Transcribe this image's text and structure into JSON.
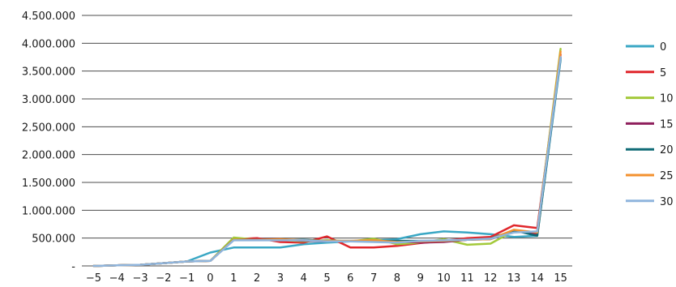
{
  "chart_data": {
    "type": "line",
    "title": "",
    "xlabel": "",
    "ylabel": "",
    "x": [
      -5,
      -4,
      -3,
      -2,
      -1,
      0,
      1,
      2,
      3,
      4,
      5,
      6,
      7,
      8,
      9,
      10,
      11,
      12,
      13,
      14,
      15
    ],
    "ylim": [
      0,
      4500000
    ],
    "yticks": [
      0,
      500000,
      1000000,
      1500000,
      2000000,
      2500000,
      3000000,
      3500000,
      4000000,
      4500000
    ],
    "ytick_labels": [
      "-",
      "500.000",
      "1.000.000",
      "1.500.000",
      "2.000.000",
      "2.500.000",
      "3.000.000",
      "3.500.000",
      "4.000.000",
      "4.500.000"
    ],
    "grid": "horizontal",
    "legend_position": "right",
    "series": [
      {
        "name": "0",
        "color": "#3aa7c4",
        "values": [
          0,
          10000,
          20000,
          50000,
          80000,
          240000,
          330000,
          330000,
          330000,
          390000,
          420000,
          440000,
          460000,
          480000,
          570000,
          620000,
          600000,
          570000,
          520000,
          540000,
          3700000
        ]
      },
      {
        "name": "5",
        "color": "#e0262b",
        "values": [
          0,
          10000,
          20000,
          50000,
          80000,
          90000,
          480000,
          500000,
          430000,
          420000,
          530000,
          330000,
          330000,
          360000,
          410000,
          450000,
          500000,
          520000,
          730000,
          680000,
          3800000
        ]
      },
      {
        "name": "10",
        "color": "#a3c93a",
        "values": [
          0,
          10000,
          20000,
          50000,
          80000,
          90000,
          510000,
          470000,
          470000,
          440000,
          460000,
          440000,
          490000,
          390000,
          420000,
          480000,
          380000,
          400000,
          630000,
          610000,
          3900000
        ]
      },
      {
        "name": "15",
        "color": "#8e1f5c",
        "values": [
          0,
          10000,
          20000,
          50000,
          80000,
          90000,
          470000,
          480000,
          480000,
          450000,
          440000,
          440000,
          450000,
          440000,
          420000,
          430000,
          470000,
          480000,
          620000,
          580000,
          3750000
        ]
      },
      {
        "name": "20",
        "color": "#0e6a75",
        "values": [
          0,
          10000,
          20000,
          50000,
          80000,
          90000,
          470000,
          470000,
          470000,
          470000,
          450000,
          450000,
          450000,
          450000,
          450000,
          450000,
          470000,
          490000,
          640000,
          540000,
          3730000
        ]
      },
      {
        "name": "25",
        "color": "#f3912f",
        "values": [
          0,
          10000,
          20000,
          50000,
          80000,
          90000,
          470000,
          470000,
          480000,
          460000,
          450000,
          450000,
          460000,
          430000,
          440000,
          450000,
          470000,
          480000,
          650000,
          600000,
          3850000
        ]
      },
      {
        "name": "30",
        "color": "#8fb5dd",
        "values": [
          0,
          10000,
          20000,
          50000,
          80000,
          90000,
          460000,
          460000,
          460000,
          460000,
          440000,
          440000,
          430000,
          420000,
          450000,
          460000,
          470000,
          490000,
          600000,
          620000,
          3750000
        ]
      }
    ]
  }
}
